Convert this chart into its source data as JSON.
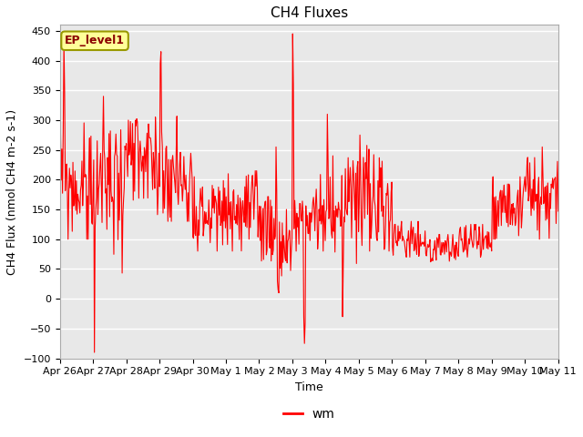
{
  "title": "CH4 Fluxes",
  "xlabel": "Time",
  "ylabel": "CH4 Flux (nmol CH4 m-2 s-1)",
  "ylim": [
    -100,
    460
  ],
  "yticks": [
    -100,
    -50,
    0,
    50,
    100,
    150,
    200,
    250,
    300,
    350,
    400,
    450
  ],
  "line_color": "#FF0000",
  "line_width": 0.8,
  "legend_label": "wm",
  "annotation_text": "EP_level1",
  "bg_color": "#E8E8E8",
  "title_fontsize": 11,
  "axis_label_fontsize": 9,
  "tick_fontsize": 8,
  "x_dates": [
    "Apr 26",
    "Apr 27",
    "Apr 28",
    "Apr 29",
    "Apr 30",
    "May 1",
    "May 2",
    "May 3",
    "May 4",
    "May 5",
    "May 6",
    "May 7",
    "May 8",
    "May 9",
    "May 10",
    "May 11"
  ],
  "num_points": 720
}
